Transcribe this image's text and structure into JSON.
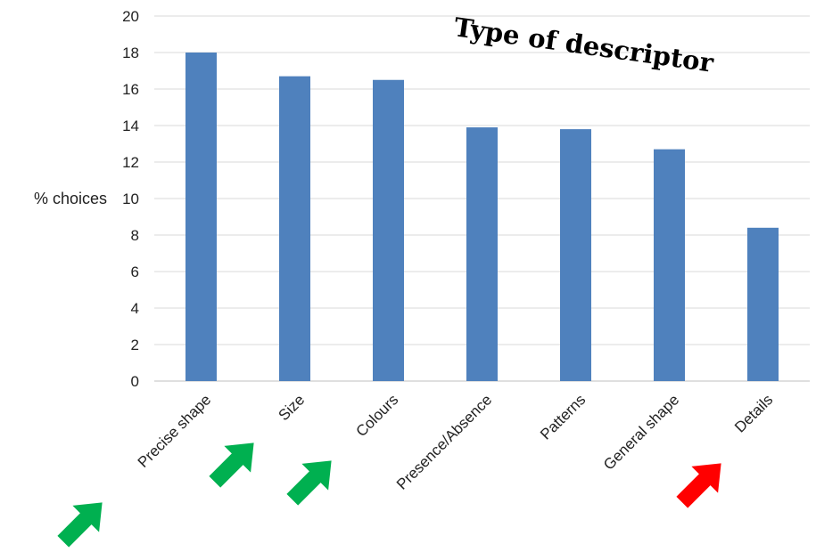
{
  "chart_data": {
    "type": "bar",
    "title": "Type of descriptor",
    "xlabel": "",
    "ylabel": "% choices",
    "ylim": [
      0,
      20
    ],
    "yticks": [
      0,
      2,
      4,
      6,
      8,
      10,
      12,
      14,
      16,
      18,
      20
    ],
    "grid": true,
    "categories": [
      "Precise shape",
      "Size",
      "Colours",
      "Presence/Absence",
      "Patterns",
      "General shape",
      "Details"
    ],
    "values": [
      18.0,
      16.7,
      16.5,
      13.9,
      13.8,
      12.7,
      8.4
    ],
    "bar_color": "#4f81bd",
    "annotations": {
      "arrows": [
        {
          "category": "Precise shape",
          "color": "#00b050",
          "meaning": "up-arrow-green"
        },
        {
          "category": "Size",
          "color": "#00b050",
          "meaning": "up-arrow-green"
        },
        {
          "category": "Colours",
          "color": "#00b050",
          "meaning": "up-arrow-green"
        },
        {
          "category": "Details",
          "color": "#ff0000",
          "meaning": "up-arrow-red"
        }
      ]
    }
  }
}
